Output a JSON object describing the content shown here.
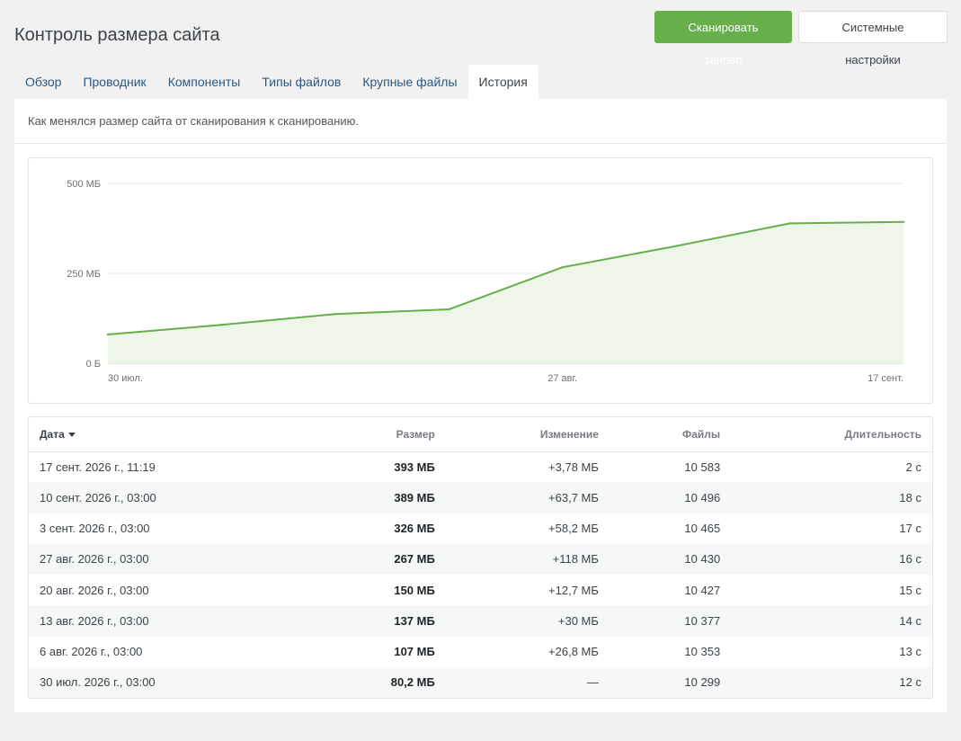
{
  "header": {
    "title": "Контроль размера сайта",
    "rescan_label": "Сканировать заново",
    "settings_label": "Системные настройки"
  },
  "tabs": [
    {
      "label": "Обзор"
    },
    {
      "label": "Проводник"
    },
    {
      "label": "Компоненты"
    },
    {
      "label": "Типы файлов"
    },
    {
      "label": "Крупные файлы"
    },
    {
      "label": "История",
      "active": true
    }
  ],
  "panel": {
    "description": "Как менялся размер сайта от сканирования к сканированию."
  },
  "colors": {
    "accent": "#66af4a",
    "area_fill": "#eef6ea"
  },
  "chart_data": {
    "type": "area",
    "x": [
      "30 июл.",
      "6 авг.",
      "13 авг.",
      "20 авг.",
      "27 авг.",
      "3 сент.",
      "10 сент.",
      "17 сент."
    ],
    "values": [
      80.2,
      107,
      137,
      150,
      267,
      326,
      389,
      393
    ],
    "yunit": "МБ",
    "ylim": [
      0,
      500
    ],
    "yticks": [
      {
        "value": 0,
        "label": "0 Б"
      },
      {
        "value": 250,
        "label": "250 МБ"
      },
      {
        "value": 500,
        "label": "500 МБ"
      }
    ],
    "xticks": [
      {
        "index": 0,
        "label": "30 июл."
      },
      {
        "index": 4,
        "label": "27 авг."
      },
      {
        "index": 7,
        "label": "17 сент."
      }
    ],
    "grid": true
  },
  "table": {
    "headers": {
      "date": "Дата",
      "size": "Размер",
      "change": "Изменение",
      "files": "Файлы",
      "duration": "Длительность"
    },
    "rows": [
      {
        "date": "17 сент. 2026 г., 11:19",
        "size": "393 МБ",
        "change": "+3,78 МБ",
        "files": "10 583",
        "duration": "2 с"
      },
      {
        "date": "10 сент. 2026 г., 03:00",
        "size": "389 МБ",
        "change": "+63,7 МБ",
        "files": "10 496",
        "duration": "18 с"
      },
      {
        "date": "3 сент. 2026 г., 03:00",
        "size": "326 МБ",
        "change": "+58,2 МБ",
        "files": "10 465",
        "duration": "17 с"
      },
      {
        "date": "27 авг. 2026 г., 03:00",
        "size": "267 МБ",
        "change": "+118 МБ",
        "files": "10 430",
        "duration": "16 с"
      },
      {
        "date": "20 авг. 2026 г., 03:00",
        "size": "150 МБ",
        "change": "+12,7 МБ",
        "files": "10 427",
        "duration": "15 с"
      },
      {
        "date": "13 авг. 2026 г., 03:00",
        "size": "137 МБ",
        "change": "+30 МБ",
        "files": "10 377",
        "duration": "14 с"
      },
      {
        "date": "6 авг. 2026 г., 03:00",
        "size": "107 МБ",
        "change": "+26,8 МБ",
        "files": "10 353",
        "duration": "13 с"
      },
      {
        "date": "30 июл. 2026 г., 03:00",
        "size": "80,2 МБ",
        "change": "—",
        "files": "10 299",
        "duration": "12 с"
      }
    ]
  }
}
